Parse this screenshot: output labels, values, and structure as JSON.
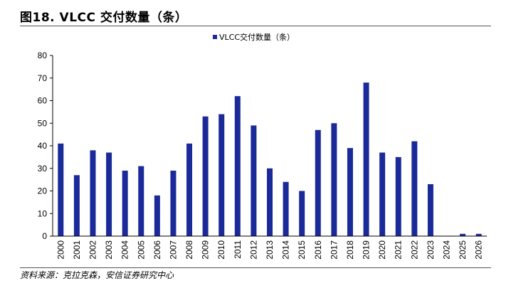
{
  "figure": {
    "title": "图18. VLCC 交付数量（条）",
    "source": "资料来源：克拉克森，安信证券研究中心"
  },
  "chart_data": {
    "type": "bar",
    "title": "",
    "xlabel": "",
    "ylabel": "",
    "legend": {
      "position": "top-center",
      "entries": [
        "VLCC交付数量（条）"
      ]
    },
    "ylim": [
      0,
      80
    ],
    "yticks": [
      0,
      10,
      20,
      30,
      40,
      50,
      60,
      70,
      80
    ],
    "grid": false,
    "bar_color": "#1A2A99",
    "categories": [
      "2000",
      "2001",
      "2002",
      "2003",
      "2004",
      "2005",
      "2006",
      "2007",
      "2008",
      "2009",
      "2010",
      "2011",
      "2012",
      "2013",
      "2014",
      "2015",
      "2016",
      "2017",
      "2018",
      "2019",
      "2020",
      "2021",
      "2022",
      "2023",
      "2024",
      "2025",
      "2026"
    ],
    "series": [
      {
        "name": "VLCC交付数量（条）",
        "values": [
          41,
          27,
          38,
          37,
          29,
          31,
          18,
          29,
          41,
          53,
          54,
          62,
          49,
          30,
          24,
          20,
          47,
          50,
          39,
          68,
          37,
          35,
          42,
          23,
          0,
          1,
          1
        ]
      }
    ]
  }
}
